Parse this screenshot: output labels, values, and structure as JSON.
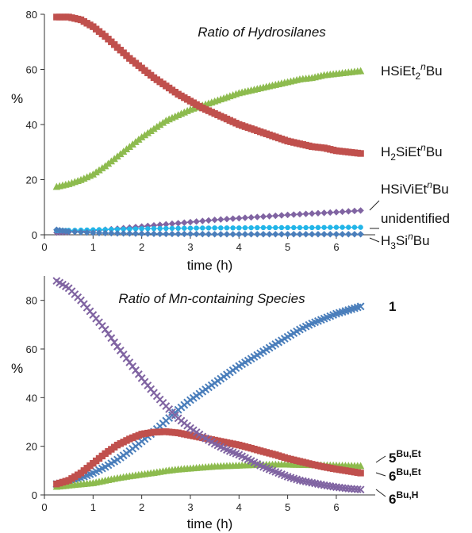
{
  "chart_data": [
    {
      "type": "scatter",
      "title": "Ratio of Hydrosilanes",
      "xlabel": "time (h)",
      "ylabel": "%",
      "xlim": [
        0,
        6.8
      ],
      "ylim": [
        0,
        80
      ],
      "xticks": [
        "0",
        "1",
        "2",
        "3",
        "4",
        "5",
        "6"
      ],
      "yticks": [
        "0",
        "20",
        "40",
        "60",
        "80"
      ],
      "grid": false,
      "legend": "direct labels at right end of curves",
      "series": [
        {
          "name": "HSiEt2nBu",
          "label_parts": [
            "HSiEt",
            "2",
            "n",
            "Bu"
          ],
          "color": "#8dbb4e",
          "marker": "triangle",
          "x": [
            0.25,
            0.5,
            0.75,
            1.0,
            1.25,
            1.5,
            1.75,
            2.0,
            2.25,
            2.5,
            2.75,
            3.0,
            3.25,
            3.5,
            3.75,
            4.0,
            4.25,
            4.5,
            4.75,
            5.0,
            5.25,
            5.5,
            5.75,
            6.0,
            6.25,
            6.5
          ],
          "y": [
            17.5,
            18.5,
            20,
            22,
            25,
            28.5,
            32,
            35.5,
            38.5,
            41.5,
            43.5,
            45.5,
            47,
            48.5,
            50,
            51.5,
            52.5,
            53.5,
            54.5,
            55.5,
            56.5,
            57,
            58,
            58.5,
            59,
            59.5
          ]
        },
        {
          "name": "H2SiEtnBu",
          "label_parts": [
            "H",
            "2",
            "SiEt",
            "n",
            "Bu"
          ],
          "color": "#c0504d",
          "marker": "square",
          "x": [
            0.25,
            0.5,
            0.75,
            1.0,
            1.25,
            1.5,
            1.75,
            2.0,
            2.25,
            2.5,
            2.75,
            3.0,
            3.25,
            3.5,
            3.75,
            4.0,
            4.25,
            4.5,
            4.75,
            5.0,
            5.25,
            5.5,
            5.75,
            6.0,
            6.25,
            6.5
          ],
          "y": [
            79,
            79,
            78,
            75.5,
            72,
            68,
            64,
            60.5,
            57,
            54,
            51,
            48.5,
            46,
            44,
            42,
            40,
            38.5,
            37,
            35.5,
            34,
            33,
            32,
            31.5,
            30.5,
            30,
            29.5
          ]
        },
        {
          "name": "HSiViEtnBu",
          "label_parts": [
            "HSiViEt",
            "",
            "n",
            "Bu"
          ],
          "color": "#8064a2",
          "marker": "diamond",
          "x": [
            0.25,
            0.5,
            1.0,
            1.5,
            2.0,
            2.5,
            3.0,
            3.5,
            4.0,
            4.5,
            5.0,
            5.5,
            6.0,
            6.5
          ],
          "y": [
            0.8,
            1.0,
            1.5,
            2.2,
            3.0,
            3.8,
            4.6,
            5.4,
            6.0,
            6.6,
            7.2,
            7.7,
            8.2,
            8.8
          ]
        },
        {
          "name": "unidentified",
          "label_parts": [
            "unidentified"
          ],
          "color": "#23b5e8",
          "marker": "circle",
          "x": [
            0.25,
            0.5,
            1.0,
            1.5,
            2.0,
            2.5,
            3.0,
            3.5,
            4.0,
            4.5,
            5.0,
            5.5,
            6.0,
            6.5
          ],
          "y": [
            1.5,
            1.6,
            1.8,
            2.0,
            2.2,
            2.3,
            2.4,
            2.5,
            2.5,
            2.6,
            2.6,
            2.6,
            2.7,
            2.7
          ]
        },
        {
          "name": "H3SinBu",
          "label_parts": [
            "H",
            "3",
            "Si",
            "n",
            "Bu"
          ],
          "color": "#4a7ebb",
          "marker": "diamond",
          "x": [
            0.25,
            0.5,
            1.0,
            1.5,
            2.0,
            2.5,
            3.0,
            3.5,
            4.0,
            4.5,
            5.0,
            5.5,
            6.0,
            6.5
          ],
          "y": [
            1.8,
            1.2,
            0.7,
            0.5,
            0.4,
            0.3,
            0.3,
            0.2,
            0.2,
            0.2,
            0.2,
            0.2,
            0.2,
            0.2
          ]
        }
      ]
    },
    {
      "type": "scatter",
      "title": "Ratio of Mn-containing Species",
      "xlabel": "time (h)",
      "ylabel": "%",
      "xlim": [
        0,
        6.8
      ],
      "ylim": [
        0,
        90
      ],
      "xticks": [
        "0",
        "1",
        "2",
        "3",
        "4",
        "5",
        "6"
      ],
      "yticks": [
        "0",
        "20",
        "40",
        "60",
        "80"
      ],
      "grid": false,
      "legend": "direct labels at right end of curves",
      "series": [
        {
          "name": "1",
          "label_parts": [
            "1"
          ],
          "color": "#4a7ebb",
          "marker": "x",
          "x": [
            0.25,
            0.5,
            0.75,
            1.0,
            1.25,
            1.5,
            1.75,
            2.0,
            2.25,
            2.5,
            2.75,
            3.0,
            3.25,
            3.5,
            3.75,
            4.0,
            4.25,
            4.5,
            4.75,
            5.0,
            5.25,
            5.5,
            5.75,
            6.0,
            6.25,
            6.5
          ],
          "y": [
            4.5,
            5.5,
            7,
            9,
            11.5,
            14.5,
            18,
            22,
            26,
            30.5,
            35,
            39,
            42.5,
            46,
            49.5,
            53,
            56,
            59,
            62,
            65,
            68,
            70.5,
            72.5,
            74.5,
            76,
            77.5
          ]
        },
        {
          "name": "5Bu,Et",
          "label_parts": [
            "5",
            "Bu,Et"
          ],
          "color": "#8dbb4e",
          "marker": "triangle",
          "x": [
            0.25,
            0.5,
            0.75,
            1.0,
            1.25,
            1.5,
            1.75,
            2.0,
            2.25,
            2.5,
            2.75,
            3.0,
            3.25,
            3.5,
            3.75,
            4.0,
            4.25,
            4.5,
            4.75,
            5.0,
            5.25,
            5.5,
            5.75,
            6.0,
            6.25,
            6.5
          ],
          "y": [
            3.5,
            4,
            4.5,
            5,
            6,
            7,
            7.8,
            8.5,
            9.2,
            10,
            10.6,
            11,
            11.4,
            11.8,
            12,
            12.2,
            12.4,
            12.5,
            12.6,
            12.6,
            12.5,
            12.4,
            12.3,
            12.2,
            12.1,
            12
          ]
        },
        {
          "name": "6Bu,Et",
          "label_parts": [
            "6",
            "Bu,Et"
          ],
          "color": "#c0504d",
          "marker": "square",
          "x": [
            0.25,
            0.5,
            0.75,
            1.0,
            1.25,
            1.5,
            1.75,
            2.0,
            2.25,
            2.5,
            2.75,
            3.0,
            3.25,
            3.5,
            3.75,
            4.0,
            4.25,
            4.5,
            4.75,
            5.0,
            5.25,
            5.5,
            5.75,
            6.0,
            6.25,
            6.5
          ],
          "y": [
            4.5,
            6,
            9,
            13,
            17,
            20.5,
            23,
            25,
            25.8,
            26,
            25.5,
            24.5,
            23.5,
            22.5,
            21.5,
            20.5,
            19.2,
            17.8,
            16.5,
            15,
            13.8,
            12.6,
            11.5,
            10.6,
            9.8,
            9
          ]
        },
        {
          "name": "6Bu,H",
          "label_parts": [
            "6",
            "Bu,H"
          ],
          "color": "#8064a2",
          "marker": "x",
          "x": [
            0.25,
            0.5,
            0.75,
            1.0,
            1.25,
            1.5,
            1.75,
            2.0,
            2.25,
            2.5,
            2.75,
            3.0,
            3.25,
            3.5,
            3.75,
            4.0,
            4.25,
            4.5,
            4.75,
            5.0,
            5.25,
            5.5,
            5.75,
            6.0,
            6.25,
            6.5
          ],
          "y": [
            88,
            85,
            80,
            74,
            68,
            61,
            54.5,
            48,
            42,
            36.5,
            31.5,
            27.5,
            24,
            21,
            18.5,
            16.5,
            14,
            11.5,
            9.5,
            7.5,
            6,
            5,
            4,
            3.2,
            2.6,
            2.2
          ]
        }
      ]
    }
  ]
}
